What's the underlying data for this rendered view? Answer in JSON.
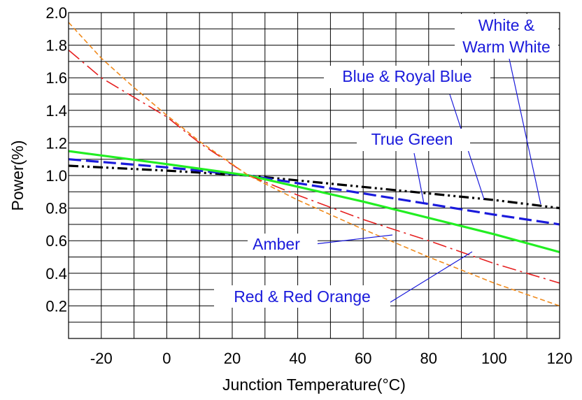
{
  "chart_data": {
    "type": "line",
    "title": "",
    "xlabel": "Junction Temperature(°C)",
    "ylabel": "Power(%)",
    "xlim": [
      -30,
      120
    ],
    "ylim": [
      0,
      2.0
    ],
    "x_ticks": [
      -20,
      0,
      20,
      40,
      60,
      80,
      100,
      120
    ],
    "y_ticks": [
      "0.2",
      "0.4",
      "0.6",
      "0.8",
      "1.0",
      "1.2",
      "1.4",
      "1.6",
      "1.8",
      "2.0"
    ],
    "grid": true,
    "series": [
      {
        "name": "White & Warm White",
        "color": "#000000",
        "style": "dash-dot-dot",
        "x": [
          -30,
          0,
          25,
          60,
          100,
          120
        ],
        "y": [
          1.06,
          1.03,
          1.0,
          0.93,
          0.85,
          0.8
        ]
      },
      {
        "name": "Blue & Royal Blue",
        "color": "#1a1adb",
        "style": "dashed",
        "x": [
          -30,
          0,
          25,
          60,
          100,
          120
        ],
        "y": [
          1.1,
          1.05,
          1.0,
          0.89,
          0.76,
          0.7
        ]
      },
      {
        "name": "True Green",
        "color": "#22ee22",
        "style": "solid",
        "x": [
          -30,
          0,
          25,
          60,
          100,
          120
        ],
        "y": [
          1.15,
          1.07,
          1.0,
          0.84,
          0.64,
          0.53
        ]
      },
      {
        "name": "Red & Red Orange",
        "color": "#e52020",
        "style": "long-dash-dot",
        "x": [
          -30,
          -20,
          -10,
          0,
          10,
          25,
          40,
          60,
          80,
          100,
          120
        ],
        "y": [
          1.77,
          1.6,
          1.48,
          1.36,
          1.2,
          1.0,
          0.88,
          0.73,
          0.6,
          0.46,
          0.34
        ]
      },
      {
        "name": "Amber",
        "color": "#f08a1c",
        "style": "short-dash",
        "x": [
          -30,
          -20,
          -10,
          0,
          10,
          25,
          40,
          60,
          80,
          100,
          120
        ],
        "y": [
          1.94,
          1.72,
          1.54,
          1.37,
          1.21,
          1.0,
          0.85,
          0.67,
          0.5,
          0.34,
          0.2
        ]
      }
    ],
    "annotations": [
      {
        "id": "white",
        "lines": [
          "White &",
          "Warm White"
        ]
      },
      {
        "id": "blue",
        "lines": [
          "Blue & Royal Blue"
        ]
      },
      {
        "id": "green",
        "lines": [
          "True Green"
        ]
      },
      {
        "id": "amber",
        "lines": [
          "Amber"
        ]
      },
      {
        "id": "red",
        "lines": [
          "Red & Red Orange"
        ]
      }
    ]
  }
}
